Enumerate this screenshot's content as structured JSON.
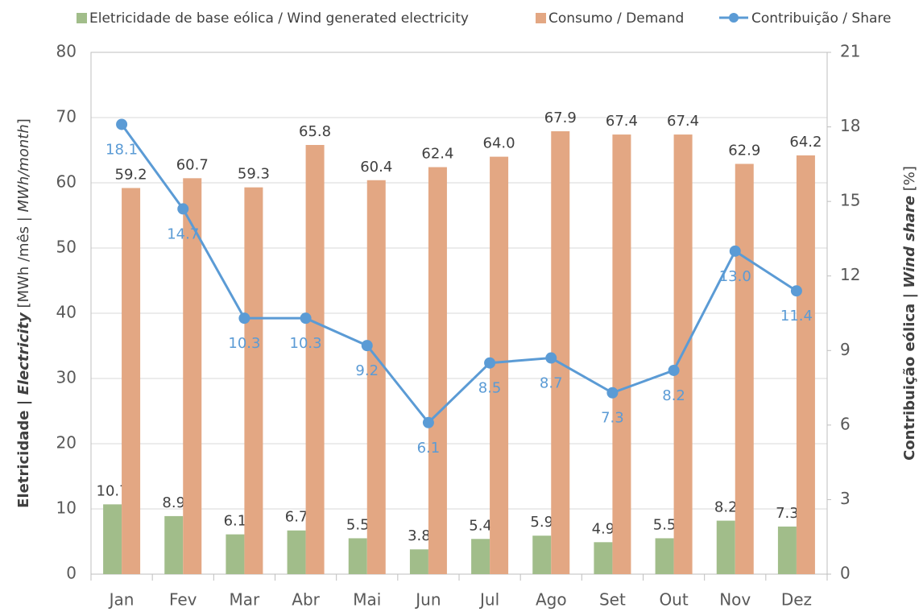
{
  "chart_data": {
    "type": "bar_line",
    "categories": [
      "Jan",
      "Fev",
      "Mar",
      "Abr",
      "Mai",
      "Jun",
      "Jul",
      "Ago",
      "Set",
      "Out",
      "Nov",
      "Dez"
    ],
    "series": [
      {
        "name": "Eletricidade de base eólica / Wind generated electricity",
        "color": "#a1bd8a",
        "type": "bar",
        "values": [
          10.7,
          8.9,
          6.1,
          6.7,
          5.5,
          3.8,
          5.4,
          5.9,
          4.9,
          5.5,
          8.2,
          7.3
        ],
        "value_labels": [
          "10.7",
          "8.9",
          "6.1",
          "6.7",
          "5.5",
          "3.8",
          "5.4",
          "5.9",
          "4.9",
          "5.5",
          "8.2",
          "7.3"
        ]
      },
      {
        "name": "Consumo / Demand",
        "color": "#e3a783",
        "type": "bar",
        "values": [
          59.2,
          60.7,
          59.3,
          65.8,
          60.4,
          62.4,
          64.0,
          67.9,
          67.4,
          67.4,
          62.9,
          64.2
        ],
        "value_labels": [
          "59.2",
          "60.7",
          "59.3",
          "65.8",
          "60.4",
          "62.4",
          "64.0",
          "67.9",
          "67.4",
          "67.4",
          "62.9",
          "64.2"
        ]
      },
      {
        "name": "Contribuição / Share",
        "color": "#5b9bd5",
        "type": "line",
        "axis": "y2",
        "values": [
          18.1,
          14.7,
          10.3,
          10.3,
          9.2,
          6.1,
          8.5,
          8.7,
          7.3,
          8.2,
          13.0,
          11.4
        ],
        "value_labels": [
          "18.1",
          "14.7",
          "10.3",
          "10.3",
          "9.2",
          "6.1",
          "8.5",
          "8.7",
          "7.3",
          "8.2",
          "13.0",
          "11.4"
        ]
      }
    ],
    "ylabel": [
      "Eletricidade | ",
      "Electricity",
      " [MWh /mês | ",
      "MWh/month",
      "]"
    ],
    "y2label": [
      "Contribuição eólica | ",
      "Wind share",
      " [%]"
    ],
    "ylim": [
      0,
      80
    ],
    "yticks": [
      0,
      10,
      20,
      30,
      40,
      50,
      60,
      70,
      80
    ],
    "y2lim": [
      0,
      21
    ],
    "y2ticks": [
      0,
      3,
      6,
      9,
      12,
      15,
      18,
      21
    ],
    "grid": true,
    "legend": "top"
  }
}
